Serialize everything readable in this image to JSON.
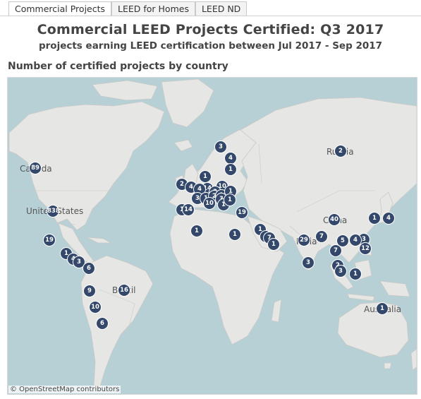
{
  "tabs": [
    {
      "label": "Commercial Projects",
      "active": true
    },
    {
      "label": "LEED for Homes",
      "active": false
    },
    {
      "label": "LEED ND",
      "active": false
    }
  ],
  "header": {
    "title": "Commercial LEED Projects Certified: Q3 2017",
    "subtitle": "projects earning LEED certification between Jul 2017 - Sep 2017"
  },
  "map": {
    "section_label": "Number of certified projects by country",
    "attribution": "© OpenStreetMap contributors",
    "colors": {
      "water": "#b7d0d6",
      "land": "#e6e6e4",
      "border": "#c9c9c6",
      "marker": "#33486b"
    },
    "country_labels": [
      {
        "key": "canada",
        "text": "Canada"
      },
      {
        "key": "united_states",
        "text": "United States"
      },
      {
        "key": "brazil",
        "text": "Brazil"
      },
      {
        "key": "russia",
        "text": "Russia"
      },
      {
        "key": "china",
        "text": "China"
      },
      {
        "key": "india",
        "text": "India"
      },
      {
        "key": "australia",
        "text": "Australia"
      }
    ],
    "markers": [
      {
        "key": "canada",
        "count": "89"
      },
      {
        "key": "united_states",
        "count": "838"
      },
      {
        "key": "mexico",
        "count": "19"
      },
      {
        "key": "central_am_1",
        "count": "1"
      },
      {
        "key": "central_am_4",
        "count": "4"
      },
      {
        "key": "central_am_3",
        "count": "3"
      },
      {
        "key": "colombia",
        "count": "6"
      },
      {
        "key": "peru",
        "count": "9"
      },
      {
        "key": "brazil",
        "count": "16"
      },
      {
        "key": "chile_north",
        "count": "10"
      },
      {
        "key": "argentina",
        "count": "6"
      },
      {
        "key": "norway",
        "count": "3"
      },
      {
        "key": "finland",
        "count": "4"
      },
      {
        "key": "estonia",
        "count": "1"
      },
      {
        "key": "ireland",
        "count": "2"
      },
      {
        "key": "uk",
        "count": "4"
      },
      {
        "key": "netherlands",
        "count": "1"
      },
      {
        "key": "germany",
        "count": "14"
      },
      {
        "key": "belgium",
        "count": "4"
      },
      {
        "key": "poland",
        "count": "10"
      },
      {
        "key": "czech",
        "count": "3"
      },
      {
        "key": "france",
        "count": "3"
      },
      {
        "key": "switzerland",
        "count": "1"
      },
      {
        "key": "austria",
        "count": "2"
      },
      {
        "key": "hungary",
        "count": "1"
      },
      {
        "key": "romania",
        "count": "3"
      },
      {
        "key": "ukraine",
        "count": "1"
      },
      {
        "key": "italy",
        "count": "10"
      },
      {
        "key": "greece",
        "count": "1"
      },
      {
        "key": "bulgaria",
        "count": "1"
      },
      {
        "key": "portugal",
        "count": "1"
      },
      {
        "key": "spain",
        "count": "14"
      },
      {
        "key": "turkey",
        "count": "19"
      },
      {
        "key": "morocco",
        "count": "1"
      },
      {
        "key": "egypt",
        "count": "1"
      },
      {
        "key": "saudi",
        "count": "1"
      },
      {
        "key": "qatar",
        "count": "1"
      },
      {
        "key": "uae",
        "count": "7"
      },
      {
        "key": "oman",
        "count": "1"
      },
      {
        "key": "india",
        "count": "29"
      },
      {
        "key": "bangladesh",
        "count": "7"
      },
      {
        "key": "china",
        "count": "40"
      },
      {
        "key": "korea",
        "count": "1"
      },
      {
        "key": "japan",
        "count": "4"
      },
      {
        "key": "taiwan",
        "count": "3"
      },
      {
        "key": "hong_kong",
        "count": "4"
      },
      {
        "key": "vietnam",
        "count": "5"
      },
      {
        "key": "thailand",
        "count": "7"
      },
      {
        "key": "philippines",
        "count": "12"
      },
      {
        "key": "sri_lanka",
        "count": "3"
      },
      {
        "key": "malaysia",
        "count": "2"
      },
      {
        "key": "singapore",
        "count": "3"
      },
      {
        "key": "indonesia",
        "count": "1"
      },
      {
        "key": "australia",
        "count": "1"
      },
      {
        "key": "russia",
        "count": "2"
      }
    ]
  }
}
